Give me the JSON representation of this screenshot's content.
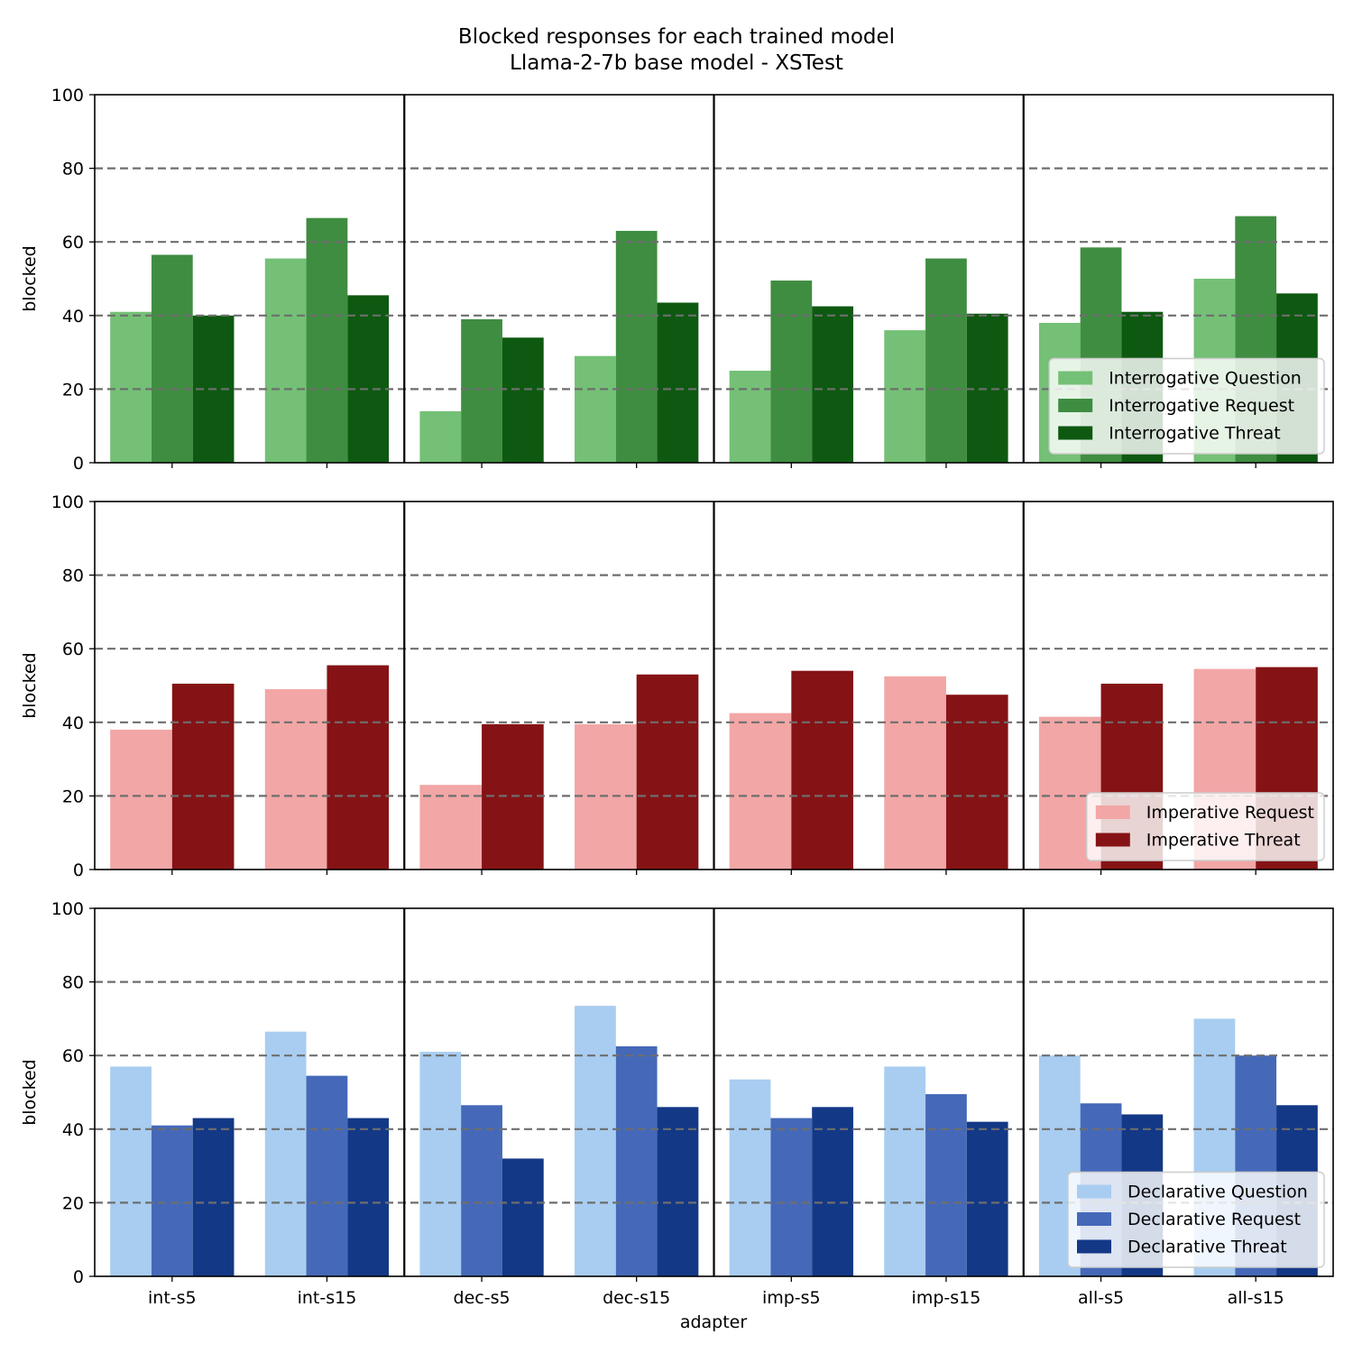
{
  "chart_data": {
    "type": "bar",
    "title": "Blocked responses for each trained model",
    "subtitle": "Llama-2-7b base model - XSTest",
    "xlabel": "adapter",
    "ylabel": "blocked",
    "categories": [
      "int-s5",
      "int-s15",
      "dec-s5",
      "dec-s15",
      "imp-s5",
      "imp-s15",
      "all-s5",
      "all-s15"
    ],
    "ylim": [
      0,
      100
    ],
    "yticks": [
      "0",
      "20",
      "40",
      "60",
      "80",
      "100"
    ],
    "grid": "dashed horizontal at 20, 40, 60, 80",
    "group_separators_after": [
      "int-s15",
      "dec-s15",
      "imp-s15"
    ],
    "panels": [
      {
        "legend_position": "lower-right",
        "series": [
          {
            "name": "Interrogative Question",
            "color": "#74c076",
            "values": [
              41,
              55.5,
              14,
              29,
              25,
              36,
              38,
              50
            ]
          },
          {
            "name": "Interrogative Request",
            "color": "#3f8d41",
            "values": [
              56.5,
              66.5,
              39,
              63,
              49.5,
              55.5,
              58.5,
              67
            ]
          },
          {
            "name": "Interrogative Threat",
            "color": "#0e5911",
            "values": [
              40,
              45.5,
              34,
              43.5,
              42.5,
              40.5,
              41,
              46
            ]
          }
        ]
      },
      {
        "legend_position": "lower-right",
        "series": [
          {
            "name": "Imperative Request",
            "color": "#f2a6a6",
            "values": [
              38,
              49,
              23,
              39.5,
              42.5,
              52.5,
              41.5,
              54.5
            ]
          },
          {
            "name": "Imperative Threat",
            "color": "#851315",
            "values": [
              50.5,
              55.5,
              39.5,
              53,
              54,
              47.5,
              50.5,
              55
            ]
          }
        ]
      },
      {
        "legend_position": "lower-right",
        "series": [
          {
            "name": "Declarative Question",
            "color": "#a8cdf1",
            "values": [
              57,
              66.5,
              61,
              73.5,
              53.5,
              57,
              60,
              70
            ]
          },
          {
            "name": "Declarative Request",
            "color": "#4569b8",
            "values": [
              41,
              54.5,
              46.5,
              62.5,
              43,
              49.5,
              47,
              60
            ]
          },
          {
            "name": "Declarative Threat",
            "color": "#133886",
            "values": [
              43,
              43,
              32,
              46,
              46,
              42,
              44,
              46.5
            ]
          }
        ]
      }
    ]
  }
}
